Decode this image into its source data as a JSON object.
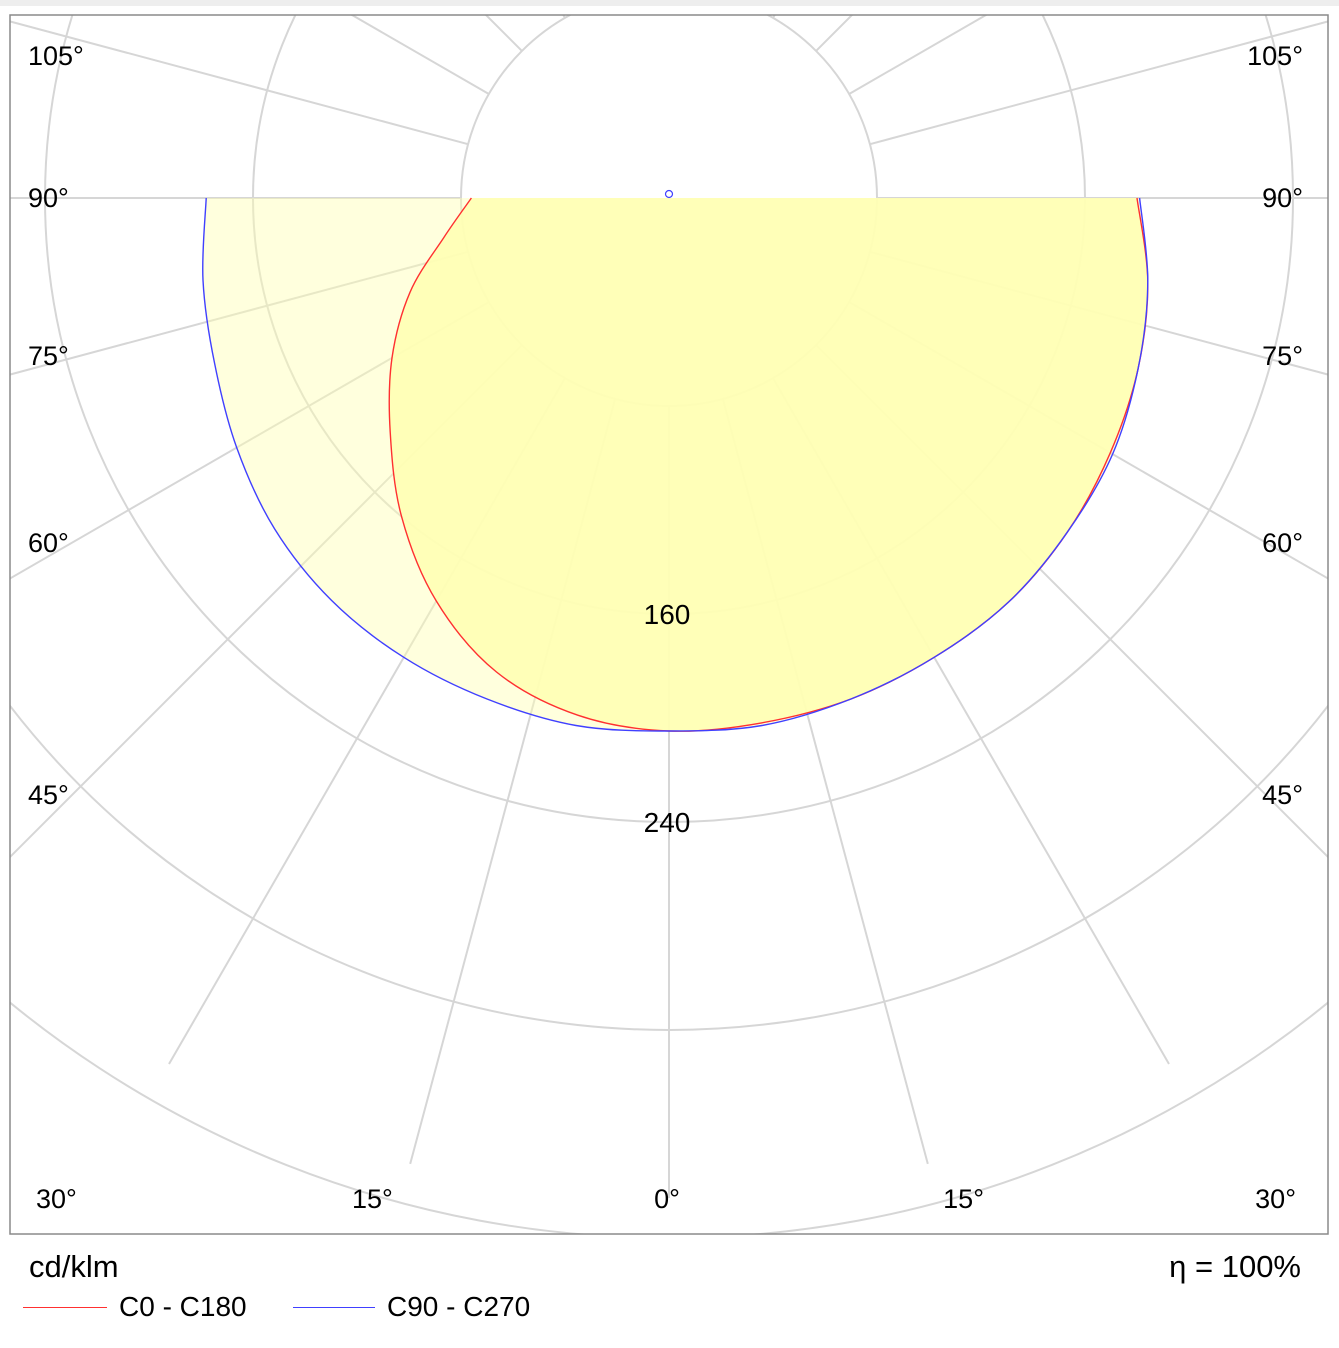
{
  "chart_data": {
    "type": "polar",
    "unit_label": "cd/klm",
    "efficiency_label": "η = 100%",
    "ring_values": [
      80,
      160,
      240,
      320,
      400
    ],
    "ring_labels_shown": [
      "160",
      "240"
    ],
    "radial_range": [
      0,
      400
    ],
    "angle_labels_left": [
      "105°",
      "90°",
      "75°",
      "60°",
      "45°",
      "30°",
      "15°"
    ],
    "angle_labels_right": [
      "105°",
      "90°",
      "75°",
      "60°",
      "45°",
      "30°",
      "15°"
    ],
    "angle_label_bottom_center": "0°",
    "colors": {
      "c0_c180": "#ff3030",
      "c90_c270": "#4040ff",
      "fill": "#ffffb4",
      "grid": "#d6d6d6"
    },
    "series": [
      {
        "name": "C0 - C180",
        "color": "#ff3030",
        "gamma_deg": [
          0,
          10,
          20,
          30,
          40,
          50,
          60,
          70,
          80,
          90
        ],
        "intensity_C0": [
          205,
          205,
          205,
          204,
          203,
          200,
          196,
          192,
          187,
          180
        ],
        "intensity_C180": [
          205,
          202,
          194,
          179,
          160,
          140,
          123,
          106,
          88,
          76
        ]
      },
      {
        "name": "C90 - C270",
        "color": "#4040ff",
        "gamma_deg": [
          0,
          10,
          20,
          30,
          40,
          50,
          60,
          70,
          80,
          90
        ],
        "intensity_C90": [
          205,
          206,
          205,
          204,
          203,
          200,
          197,
          192,
          187,
          181
        ],
        "intensity_C270": [
          205,
          206,
          205,
          204,
          202,
          198,
          192,
          186,
          182,
          178
        ]
      }
    ]
  }
}
